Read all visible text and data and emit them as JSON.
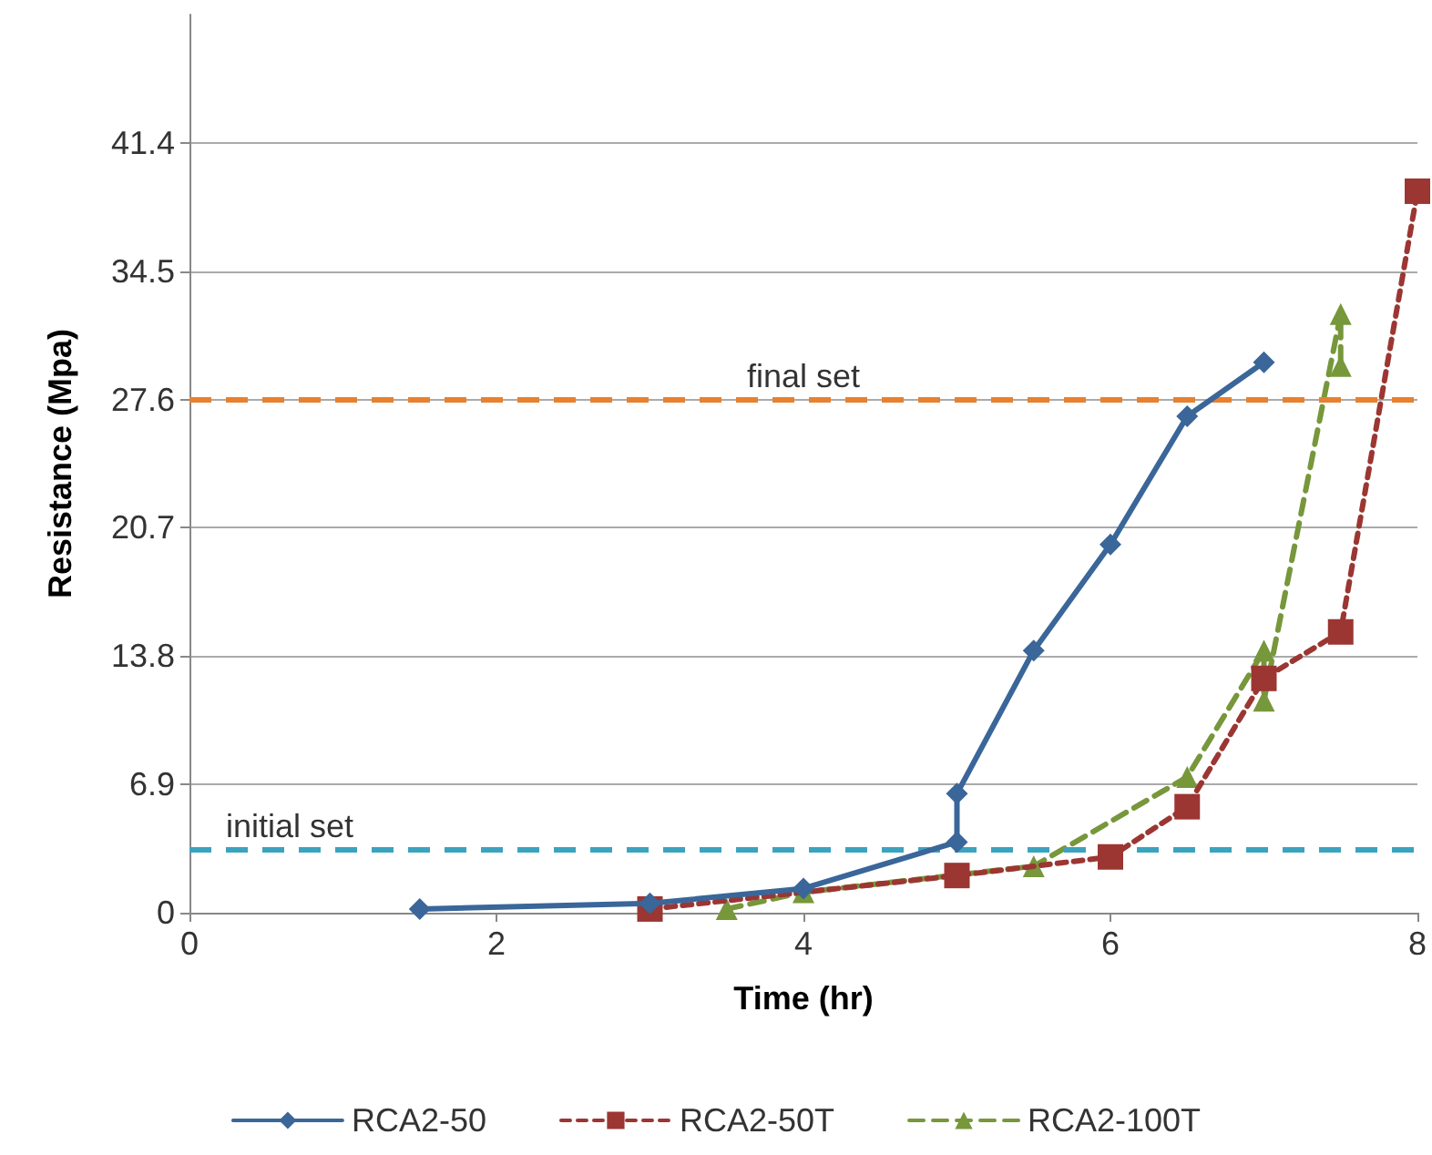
{
  "chart_data": {
    "type": "line",
    "xlabel": "Time (hr)",
    "ylabel": "Resistance (Mpa)",
    "xlim": [
      0,
      8
    ],
    "xticks": [
      0,
      2,
      4,
      6,
      8
    ],
    "ylim": [
      0,
      48.3
    ],
    "yticks": [
      0,
      6.9,
      13.8,
      20.7,
      27.6,
      34.5,
      41.4
    ],
    "grid": "y",
    "legend": "bottom",
    "series": [
      {
        "name": "RCA2-50",
        "color": "#3a6699",
        "marker": "diamond",
        "line_style": "solid",
        "x": [
          1.5,
          3,
          4,
          5,
          5,
          5.5,
          6,
          6.5,
          7
        ],
        "values": [
          0.2,
          0.5,
          1.3,
          3.8,
          6.4,
          14.1,
          19.8,
          26.7,
          29.6
        ]
      },
      {
        "name": "RCA2-50T",
        "color": "#9b3632",
        "marker": "square",
        "line_style": "dotted",
        "x": [
          3,
          5,
          6,
          6.5,
          7,
          7.5,
          8
        ],
        "values": [
          0.2,
          2.0,
          3.0,
          5.7,
          12.6,
          15.1,
          38.8
        ]
      },
      {
        "name": "RCA2-100T",
        "color": "#77973b",
        "marker": "triangle",
        "line_style": "dashed",
        "x": [
          3.5,
          4,
          5.5,
          6.5,
          7,
          7,
          7.5,
          7.5
        ],
        "values": [
          0.2,
          1.1,
          2.5,
          7.3,
          14.1,
          11.4,
          32.2,
          29.4
        ]
      }
    ],
    "ref_lines": [
      {
        "axis": "y",
        "value": 27.6,
        "label": "final set",
        "color": "#e8812f",
        "line_style": "dashed"
      },
      {
        "axis": "y",
        "value": 3.4,
        "label": "initial set",
        "color": "#3ba3bf",
        "line_style": "dashed"
      }
    ]
  }
}
